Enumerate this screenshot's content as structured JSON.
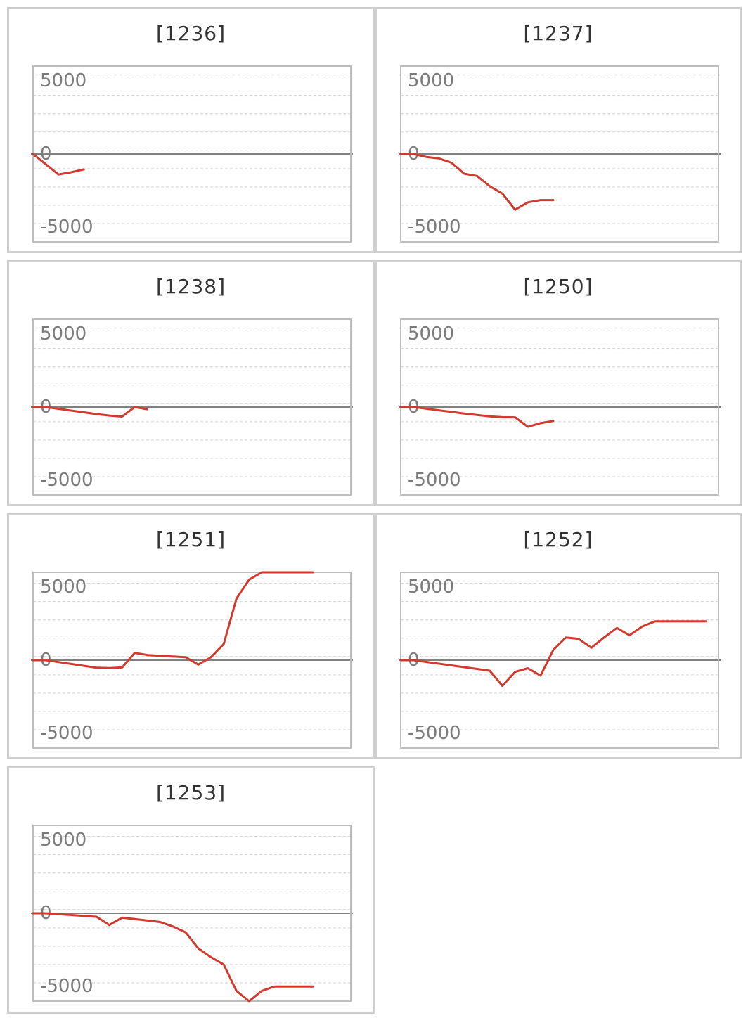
{
  "colors": {
    "line": "#d23a2e",
    "zero_line": "#808080",
    "grid": "#d3d3d3",
    "frame": "#bdbdbd",
    "panel_border": "#cfcfcf"
  },
  "chart_data": [
    {
      "type": "line",
      "title": "[1236]",
      "ylim": [
        -6000,
        6000
      ],
      "yticks": [
        5000,
        0,
        -5000
      ],
      "tick_labels": [
        "5000",
        "0",
        "-5000"
      ],
      "x": [
        0,
        1,
        2,
        3,
        4
      ],
      "values": [
        0,
        -700,
        -1400,
        -1250,
        -1050
      ]
    },
    {
      "type": "line",
      "title": "[1237]",
      "ylim": [
        -6000,
        6000
      ],
      "yticks": [
        5000,
        0,
        -5000
      ],
      "tick_labels": [
        "5000",
        "0",
        "-5000"
      ],
      "x": [
        0,
        1,
        2,
        3,
        4,
        5,
        6,
        7,
        8,
        9,
        10,
        11,
        12
      ],
      "values": [
        0,
        0,
        -200,
        -300,
        -600,
        -1350,
        -1500,
        -2200,
        -2700,
        -3800,
        -3300,
        -3150,
        -3150
      ]
    },
    {
      "type": "line",
      "title": "[1238]",
      "ylim": [
        -6000,
        6000
      ],
      "yticks": [
        5000,
        0,
        -5000
      ],
      "tick_labels": [
        "5000",
        "0",
        "-5000"
      ],
      "x": [
        0,
        1,
        2,
        3,
        4,
        5,
        6,
        7,
        8,
        9
      ],
      "values": [
        0,
        0,
        -120,
        -240,
        -360,
        -480,
        -580,
        -650,
        0,
        -150
      ]
    },
    {
      "type": "line",
      "title": "[1250]",
      "ylim": [
        -6000,
        6000
      ],
      "yticks": [
        5000,
        0,
        -5000
      ],
      "tick_labels": [
        "5000",
        "0",
        "-5000"
      ],
      "x": [
        0,
        1,
        2,
        3,
        4,
        5,
        6,
        7,
        8,
        9,
        10,
        11,
        12
      ],
      "values": [
        0,
        0,
        -110,
        -220,
        -330,
        -440,
        -540,
        -640,
        -690,
        -700,
        -1350,
        -1100,
        -950
      ]
    },
    {
      "type": "line",
      "title": "[1251]",
      "ylim": [
        -6000,
        6000
      ],
      "yticks": [
        5000,
        0,
        -5000
      ],
      "tick_labels": [
        "5000",
        "0",
        "-5000"
      ],
      "x": [
        0,
        1,
        2,
        3,
        4,
        5,
        6,
        7,
        8,
        9,
        10,
        11,
        12,
        13,
        14,
        15,
        16,
        17,
        18,
        19,
        20,
        21,
        22
      ],
      "values": [
        0,
        0,
        -130,
        -260,
        -390,
        -520,
        -540,
        -500,
        500,
        350,
        300,
        250,
        200,
        -300,
        200,
        1100,
        4200,
        5500,
        6000,
        6000,
        6000,
        6000,
        6000
      ]
    },
    {
      "type": "line",
      "title": "[1252]",
      "ylim": [
        -6000,
        6000
      ],
      "yticks": [
        5000,
        0,
        -5000
      ],
      "tick_labels": [
        "5000",
        "0",
        "-5000"
      ],
      "x": [
        0,
        1,
        2,
        3,
        4,
        5,
        6,
        7,
        8,
        9,
        10,
        11,
        12,
        13,
        14,
        15,
        16,
        17,
        18,
        19,
        20,
        21,
        22,
        23,
        24
      ],
      "values": [
        0,
        0,
        -120,
        -240,
        -360,
        -480,
        -600,
        -720,
        -1750,
        -800,
        -550,
        -1050,
        700,
        1550,
        1450,
        850,
        1550,
        2200,
        1700,
        2300,
        2650,
        2650,
        2650,
        2650,
        2650
      ]
    },
    {
      "type": "line",
      "title": "[1253]",
      "ylim": [
        -6000,
        6000
      ],
      "yticks": [
        5000,
        0,
        -5000
      ],
      "tick_labels": [
        "5000",
        "0",
        "-5000"
      ],
      "x": [
        0,
        1,
        2,
        3,
        4,
        5,
        6,
        7,
        8,
        9,
        10,
        11,
        12,
        13,
        14,
        15,
        16,
        17,
        18,
        19,
        20,
        21,
        22
      ],
      "values": [
        0,
        0,
        -60,
        -120,
        -180,
        -240,
        -800,
        -300,
        -400,
        -500,
        -600,
        -900,
        -1300,
        -2400,
        -3000,
        -3500,
        -5300,
        -6000,
        -5300,
        -5000,
        -5000,
        -5000,
        -5000
      ]
    }
  ]
}
